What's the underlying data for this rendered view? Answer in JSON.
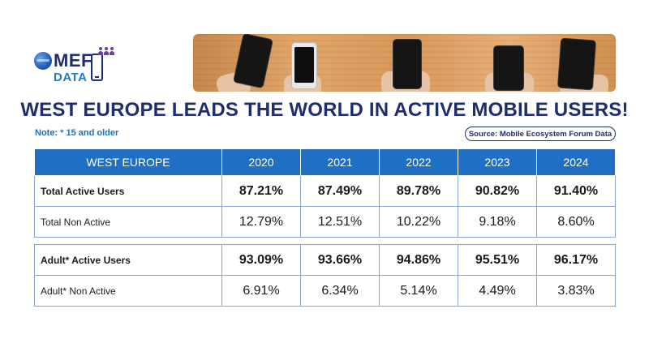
{
  "logo": {
    "line1": "MEF",
    "line2": "DATA"
  },
  "title": "WEST EUROPE LEADS THE WORLD IN ACTIVE MOBILE USERS!",
  "note": "Note: * 15 and older",
  "source": "Source: Mobile Ecosystem Forum Data",
  "table": {
    "header": [
      "WEST EUROPE",
      "2020",
      "2021",
      "2022",
      "2023",
      "2024"
    ],
    "group1": [
      {
        "label": "Total Active Users",
        "values": [
          "87.21%",
          "87.49%",
          "89.78%",
          "90.82%",
          "91.40%"
        ]
      },
      {
        "label": "Total Non Active",
        "values": [
          "12.79%",
          "12.51%",
          "10.22%",
          "9.18%",
          "8.60%"
        ]
      }
    ],
    "group2": [
      {
        "label": "Adult* Active Users",
        "values": [
          "93.09%",
          "93.66%",
          "94.86%",
          "95.51%",
          "96.17%"
        ]
      },
      {
        "label": "Adult* Non Active",
        "values": [
          "6.91%",
          "6.34%",
          "5.14%",
          "4.49%",
          "3.83%"
        ]
      }
    ]
  },
  "colors": {
    "brand_navy": "#1f2d6e",
    "header_blue": "#1f6fc4",
    "accent_blue": "#1f6fb8"
  },
  "icons": [
    "globe-icon",
    "phone-icon",
    "people-icon"
  ]
}
